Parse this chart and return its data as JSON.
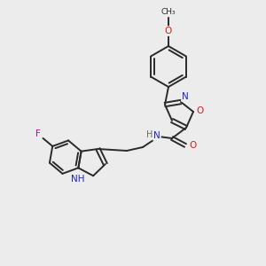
{
  "background_color": "#ececec",
  "bond_color": "#2a2a2a",
  "atom_colors": {
    "N": "#2222cc",
    "O": "#cc2222",
    "F": "#cc00aa",
    "H": "#666666",
    "C": "#2a2a2a"
  },
  "figsize": [
    3.0,
    3.0
  ],
  "dpi": 100
}
